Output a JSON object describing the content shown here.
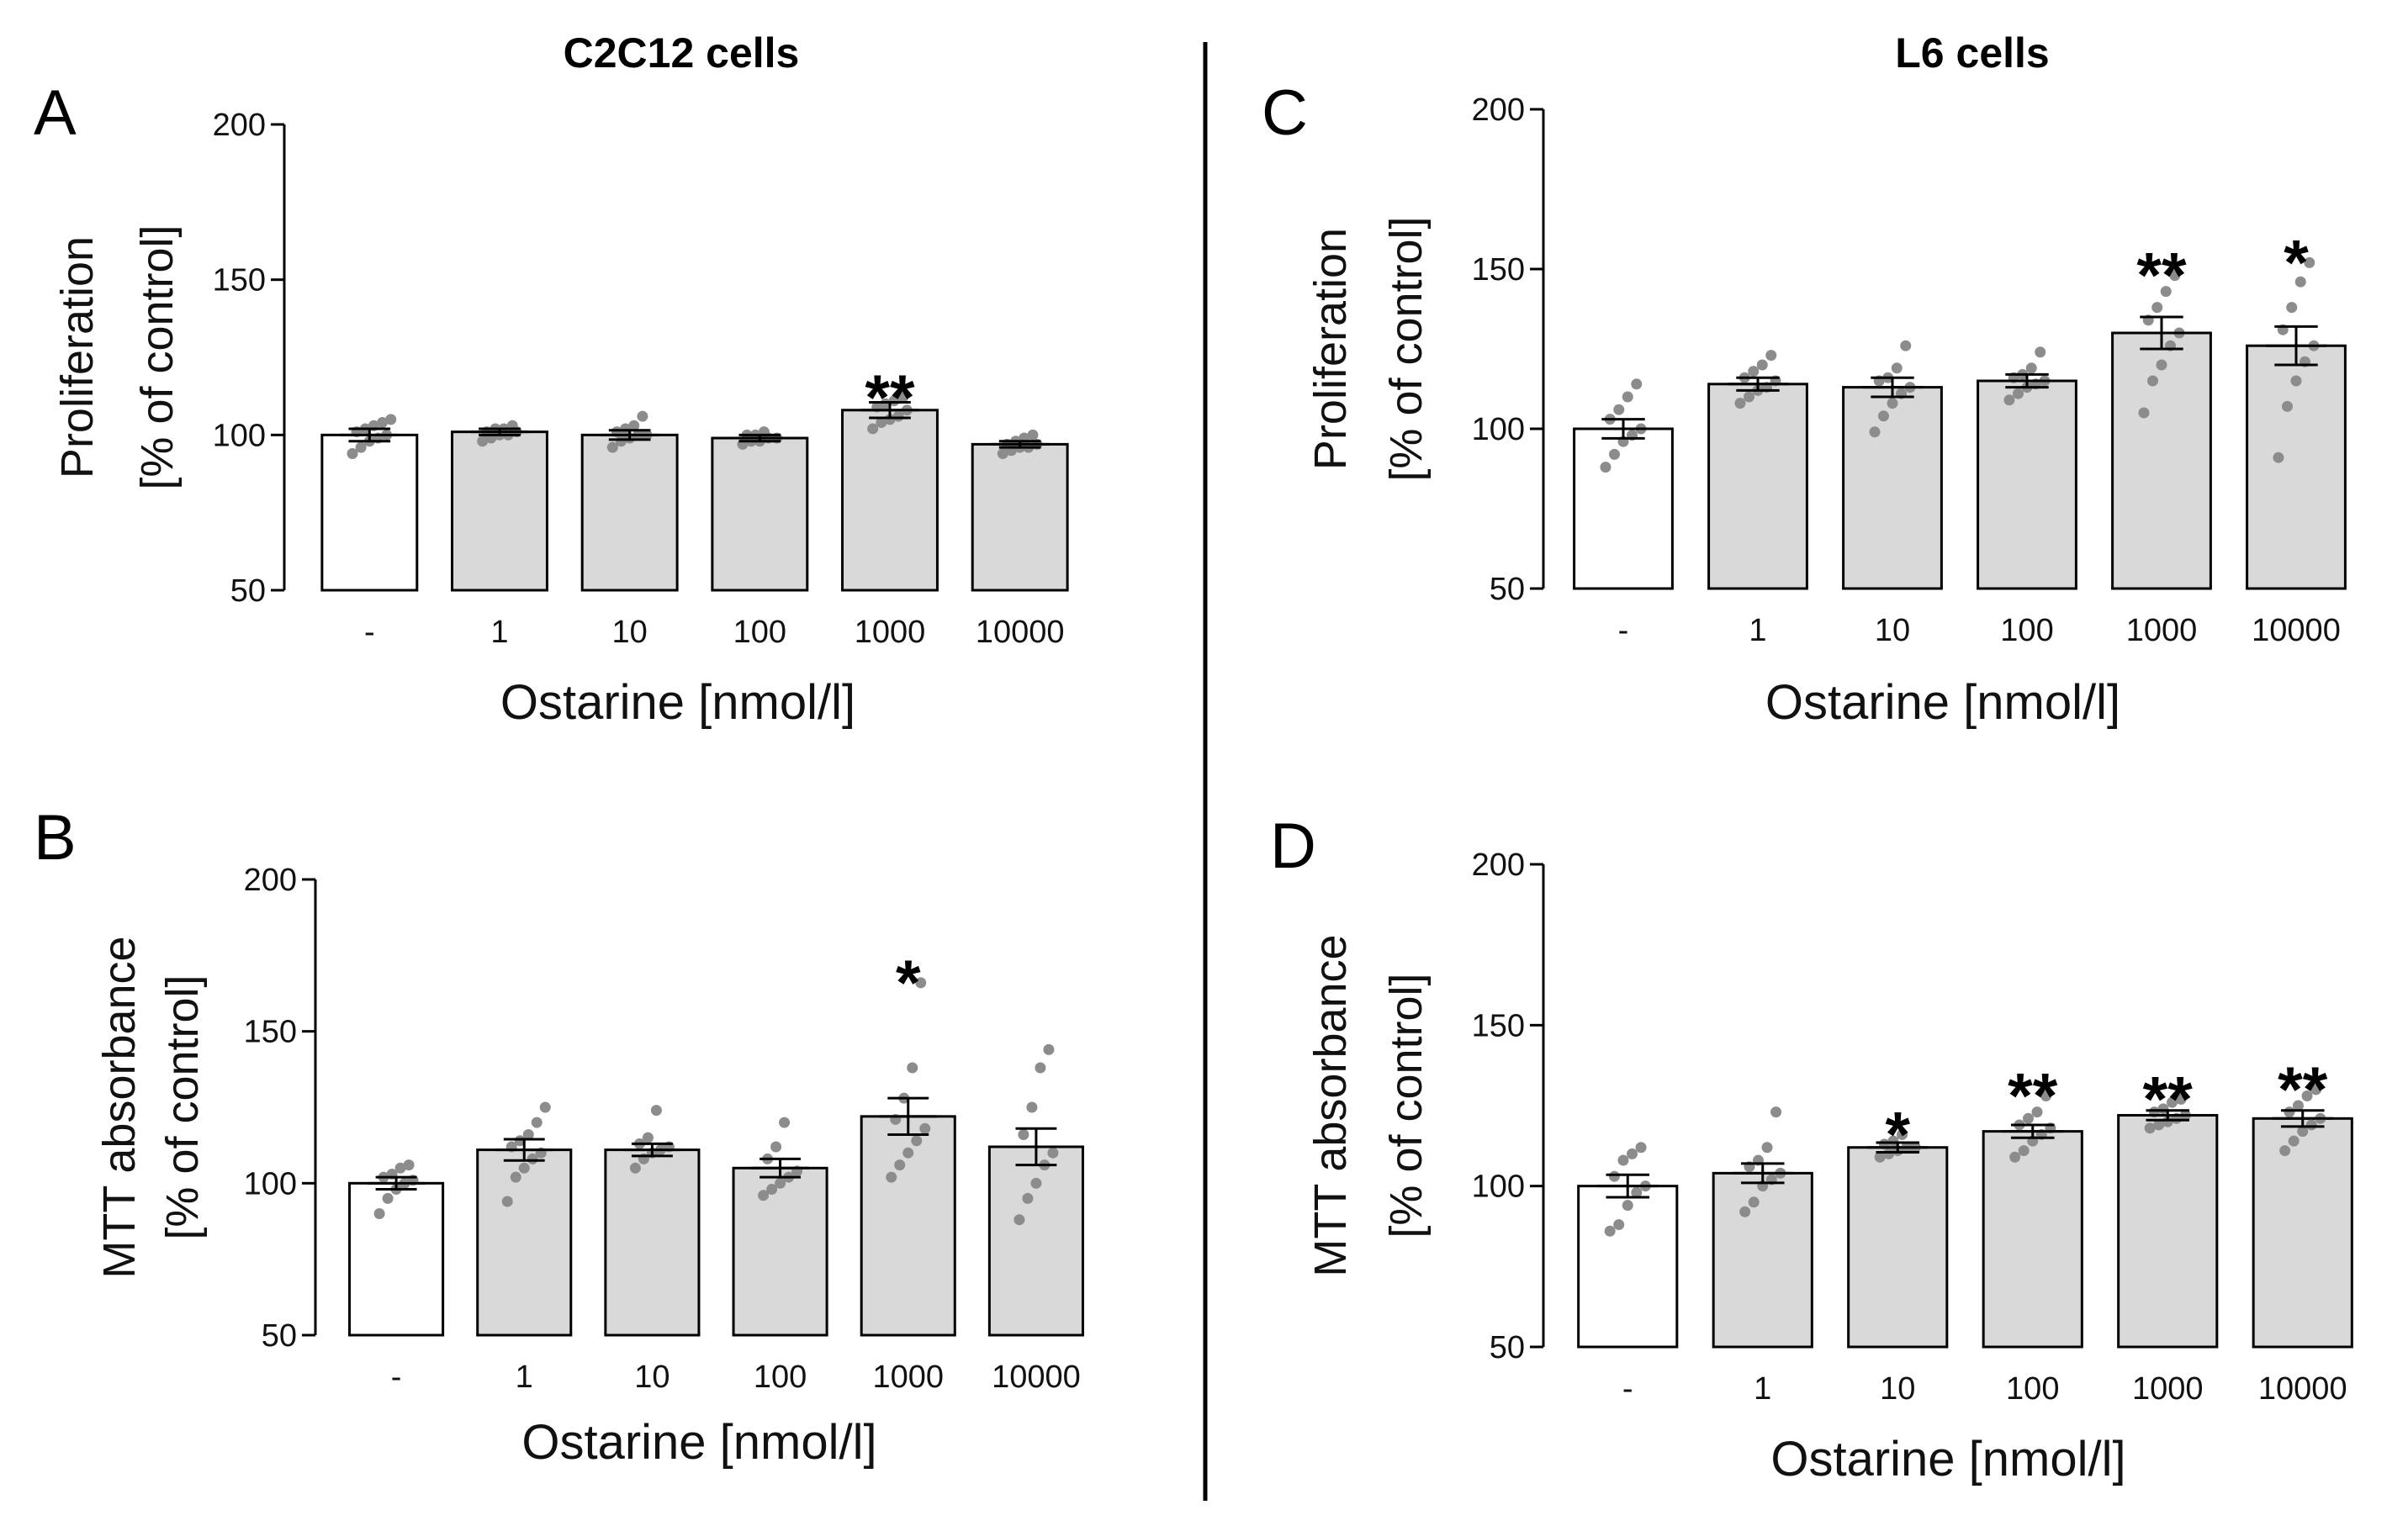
{
  "colors": {
    "control_bar": "#ffffff",
    "treated_bar": "#d9d9d9",
    "bar_outline": "#000000",
    "dots": "#8c8c8c",
    "text": "#000000"
  },
  "column_titles": {
    "left": "C2C12 cells",
    "right": "L6 cells"
  },
  "chart_data": [
    {
      "panel": "A",
      "type": "bar",
      "cell_line": "C2C12 cells",
      "categories": [
        "-",
        "1",
        "10",
        "100",
        "1000",
        "10000"
      ],
      "values": [
        100,
        101,
        100,
        99,
        108,
        97
      ],
      "sem": [
        2,
        1,
        1.5,
        1,
        2.5,
        1
      ],
      "points": [
        [
          94,
          96,
          98,
          99,
          100,
          101,
          102,
          103,
          104,
          105
        ],
        [
          98,
          99,
          100,
          100,
          101,
          101,
          102,
          102,
          103
        ],
        [
          96,
          98,
          99,
          100,
          100,
          101,
          102,
          103,
          106
        ],
        [
          97,
          98,
          98,
          99,
          99,
          100,
          100,
          101
        ],
        [
          102,
          104,
          105,
          106,
          108,
          109,
          110,
          111,
          112
        ],
        [
          94,
          95,
          96,
          96,
          97,
          97,
          98,
          99,
          100
        ]
      ],
      "significance": [
        "",
        "",
        "",
        "",
        "**",
        ""
      ],
      "xlabel": "Ostarine [nmol/l]",
      "ylabel_line1": "Proliferation",
      "ylabel_line2": "[% of control]",
      "yticks": [
        "50",
        "100",
        "150",
        "200"
      ],
      "ylim": [
        50,
        200
      ]
    },
    {
      "panel": "B",
      "type": "bar",
      "cell_line": "C2C12 cells",
      "categories": [
        "-",
        "1",
        "10",
        "100",
        "1000",
        "10000"
      ],
      "values": [
        100,
        111,
        111,
        105,
        122,
        112
      ],
      "sem": [
        2,
        3.5,
        2,
        3,
        6,
        6
      ],
      "points": [
        [
          90,
          95,
          98,
          100,
          101,
          102,
          103,
          105,
          106
        ],
        [
          94,
          102,
          105,
          108,
          110,
          112,
          114,
          116,
          120,
          125
        ],
        [
          105,
          108,
          110,
          111,
          112,
          113,
          115,
          124
        ],
        [
          96,
          98,
          100,
          102,
          104,
          108,
          112,
          120
        ],
        [
          102,
          106,
          110,
          114,
          118,
          121,
          128,
          138,
          166
        ],
        [
          88,
          95,
          100,
          106,
          110,
          116,
          125,
          138,
          144
        ]
      ],
      "significance": [
        "",
        "",
        "",
        "",
        "*",
        ""
      ],
      "xlabel": "Ostarine [nmol/l]",
      "ylabel_line1": "MTT absorbance",
      "ylabel_line2": "[% of control]",
      "yticks": [
        "50",
        "100",
        "150",
        "200"
      ],
      "ylim": [
        50,
        200
      ]
    },
    {
      "panel": "C",
      "type": "bar",
      "cell_line": "L6 cells",
      "categories": [
        "-",
        "1",
        "10",
        "100",
        "1000",
        "10000"
      ],
      "values": [
        100,
        114,
        113,
        115,
        130,
        126
      ],
      "sem": [
        3,
        2,
        3,
        2,
        5,
        6
      ],
      "points": [
        [
          88,
          92,
          96,
          98,
          100,
          103,
          106,
          110,
          114
        ],
        [
          108,
          110,
          112,
          113,
          115,
          116,
          118,
          120,
          123
        ],
        [
          99,
          104,
          108,
          111,
          113,
          115,
          116,
          119,
          126
        ],
        [
          109,
          111,
          113,
          114,
          115,
          116,
          117,
          119,
          124
        ],
        [
          105,
          115,
          120,
          126,
          130,
          134,
          138,
          143,
          148
        ],
        [
          91,
          107,
          115,
          121,
          126,
          131,
          138,
          146,
          152
        ]
      ],
      "significance": [
        "",
        "",
        "",
        "",
        "**",
        "*"
      ],
      "xlabel": "Ostarine [nmol/l]",
      "ylabel_line1": "Proliferation",
      "ylabel_line2": "[% of control]",
      "yticks": [
        "50",
        "100",
        "150",
        "200"
      ],
      "ylim": [
        50,
        200
      ]
    },
    {
      "panel": "D",
      "type": "bar",
      "cell_line": "L6 cells",
      "categories": [
        "-",
        "1",
        "10",
        "100",
        "1000",
        "10000"
      ],
      "values": [
        100,
        104,
        112,
        117,
        122,
        121
      ],
      "sem": [
        3.5,
        3,
        1.5,
        2,
        1.5,
        2.5
      ],
      "points": [
        [
          86,
          88,
          94,
          98,
          100,
          103,
          108,
          110,
          112
        ],
        [
          92,
          95,
          100,
          102,
          104,
          106,
          108,
          112,
          123
        ],
        [
          109,
          110,
          111,
          112,
          112,
          113,
          114,
          116
        ],
        [
          109,
          111,
          114,
          116,
          118,
          119,
          121,
          123,
          128
        ],
        [
          118,
          119,
          120,
          121,
          122,
          123,
          124,
          126,
          127
        ],
        [
          111,
          114,
          117,
          119,
          121,
          123,
          125,
          128,
          130
        ]
      ],
      "significance": [
        "",
        "",
        "*",
        "**",
        "**",
        "**"
      ],
      "xlabel": "Ostarine [nmol/l]",
      "ylabel_line1": "MTT absorbance",
      "ylabel_line2": "[% of control]",
      "yticks": [
        "50",
        "100",
        "150",
        "200"
      ],
      "ylim": [
        50,
        200
      ]
    }
  ]
}
